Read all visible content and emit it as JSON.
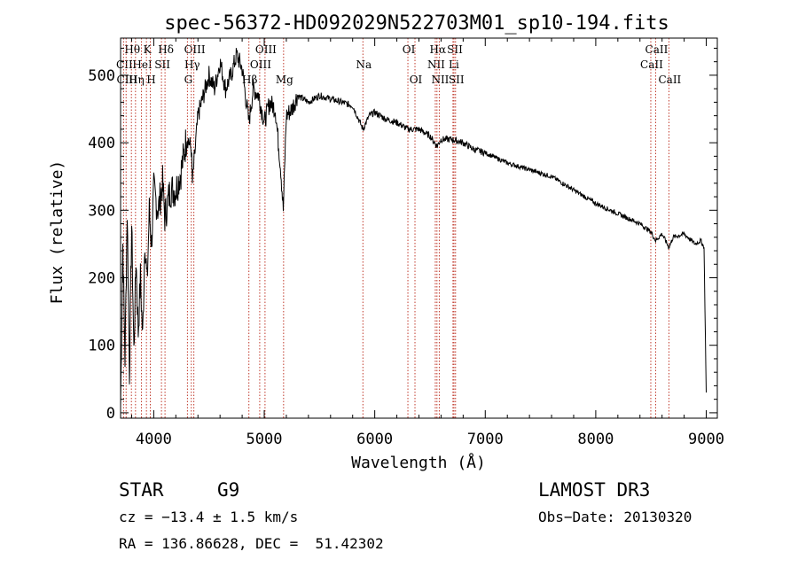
{
  "chart_data": {
    "type": "line",
    "title": "spec-56372-HD092029N522703M01_sp10-194.fits",
    "xlabel": "Wavelength (Å)",
    "ylabel": "Flux (relative)",
    "xlim": [
      3700,
      9100
    ],
    "ylim": [
      -8,
      555
    ],
    "x_ticks": [
      4000,
      5000,
      6000,
      7000,
      8000,
      9000
    ],
    "y_ticks": [
      0,
      100,
      200,
      300,
      400,
      500
    ],
    "grid": false,
    "series": [
      {
        "name": "flux",
        "x": [
          3700,
          3720,
          3740,
          3760,
          3780,
          3800,
          3820,
          3840,
          3860,
          3880,
          3900,
          3920,
          3940,
          3960,
          3980,
          4000,
          4040,
          4080,
          4100,
          4150,
          4200,
          4250,
          4300,
          4340,
          4350,
          4400,
          4450,
          4500,
          4550,
          4600,
          4650,
          4700,
          4750,
          4800,
          4861,
          4900,
          4950,
          5000,
          5050,
          5100,
          5150,
          5172,
          5200,
          5250,
          5300,
          5400,
          5500,
          5600,
          5700,
          5800,
          5893,
          5950,
          6000,
          6100,
          6200,
          6300,
          6400,
          6500,
          6563,
          6600,
          6700,
          6800,
          6900,
          7000,
          7200,
          7400,
          7600,
          7800,
          8000,
          8200,
          8400,
          8498,
          8542,
          8600,
          8662,
          8700,
          8800,
          8900,
          8950,
          8980,
          9000
        ],
        "y": [
          10,
          250,
          80,
          300,
          60,
          280,
          90,
          230,
          120,
          200,
          110,
          260,
          190,
          300,
          250,
          330,
          300,
          340,
          290,
          330,
          330,
          360,
          410,
          390,
          340,
          440,
          470,
          500,
          480,
          520,
          480,
          500,
          530,
          510,
          430,
          480,
          470,
          430,
          460,
          450,
          360,
          300,
          440,
          450,
          470,
          460,
          470,
          465,
          460,
          455,
          420,
          440,
          445,
          435,
          430,
          420,
          420,
          410,
          395,
          405,
          405,
          400,
          390,
          385,
          370,
          360,
          350,
          330,
          310,
          295,
          280,
          268,
          255,
          265,
          245,
          260,
          265,
          250,
          255,
          245,
          30
        ],
        "color": "#000000"
      }
    ],
    "lines": [
      {
        "label": "Hθ",
        "wavelength": 3798,
        "row": 1
      },
      {
        "label": "CII",
        "wavelength": 3727,
        "row": 2
      },
      {
        "label": "CIII",
        "wavelength": 3750,
        "row": 3
      },
      {
        "label": "K",
        "wavelength": 3934,
        "row": 1
      },
      {
        "label": "HeI",
        "wavelength": 3889,
        "row": 2
      },
      {
        "label": "Hη",
        "wavelength": 3835,
        "row": 3
      },
      {
        "label": "SII",
        "wavelength": 4070,
        "row": 2
      },
      {
        "label": "H",
        "wavelength": 3969,
        "row": 3
      },
      {
        "label": "Hδ",
        "wavelength": 4102,
        "row": 1
      },
      {
        "label": "OIII",
        "wavelength": 4363,
        "row": 1
      },
      {
        "label": "Hγ",
        "wavelength": 4340,
        "row": 2
      },
      {
        "label": "G",
        "wavelength": 4305,
        "row": 3
      },
      {
        "label": "OIII",
        "wavelength": 5007,
        "row": 1
      },
      {
        "label": "OIII",
        "wavelength": 4959,
        "row": 2
      },
      {
        "label": "Hβ",
        "wavelength": 4861,
        "row": 3
      },
      {
        "label": "Mg",
        "wavelength": 5175,
        "row": 3
      },
      {
        "label": "Na",
        "wavelength": 5893,
        "row": 2
      },
      {
        "label": "OI",
        "wavelength": 6300,
        "row": 1
      },
      {
        "label": "OI",
        "wavelength": 6364,
        "row": 3
      },
      {
        "label": "Hα",
        "wavelength": 6563,
        "row": 1
      },
      {
        "label": "SII",
        "wavelength": 6717,
        "row": 1
      },
      {
        "label": "NII",
        "wavelength": 6548,
        "row": 2
      },
      {
        "label": "Li",
        "wavelength": 6708,
        "row": 2
      },
      {
        "label": "NII",
        "wavelength": 6584,
        "row": 3
      },
      {
        "label": "SII",
        "wavelength": 6731,
        "row": 3
      },
      {
        "label": "CaII",
        "wavelength": 8542,
        "row": 1
      },
      {
        "label": "CaII",
        "wavelength": 8498,
        "row": 2
      },
      {
        "label": "CaII",
        "wavelength": 8662,
        "row": 3
      }
    ]
  },
  "info": {
    "class_label": "STAR",
    "subclass": "G9",
    "survey": "LAMOST DR3",
    "cz": "cz = −13.4 ± 1.5 km/s",
    "obs_date": "Obs−Date: 20130320",
    "coords": "RA = 136.86628, DEC =  51.42302"
  }
}
